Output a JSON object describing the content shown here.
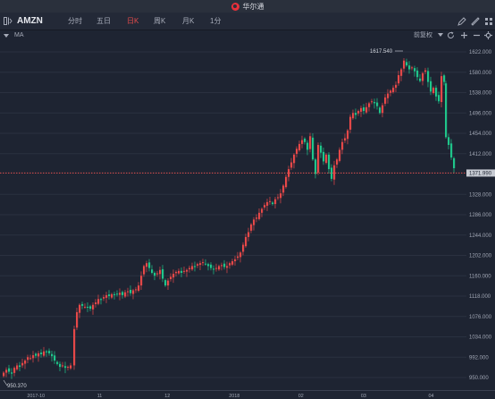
{
  "app": {
    "title": "华尔通"
  },
  "toolbar": {
    "symbol": "AMZN",
    "tabs": [
      {
        "label": "分时",
        "active": false
      },
      {
        "label": "五日",
        "active": false
      },
      {
        "label": "日K",
        "active": true
      },
      {
        "label": "周K",
        "active": false
      },
      {
        "label": "月K",
        "active": false
      },
      {
        "label": "1分",
        "active": false
      }
    ]
  },
  "subbar": {
    "indicator": "MA",
    "adjust_label": "前复权"
  },
  "colors": {
    "up": "#e54848",
    "down": "#1fc58a",
    "bg": "#1e2432",
    "grid": "#2c3342",
    "current": "#e05050"
  },
  "chart_data": {
    "type": "candlestick",
    "symbol": "AMZN",
    "y_ticks": [
      "1622.000",
      "1580.000",
      "1538.000",
      "1496.000",
      "1454.000",
      "1412.000",
      "1371.990",
      "1328.000",
      "1286.000",
      "1244.000",
      "1202.000",
      "1160.000",
      "1118.000",
      "1076.000",
      "1034.000",
      "992.000",
      "950.000"
    ],
    "x_ticks": [
      "2017-10",
      "11",
      "12",
      "2018",
      "02",
      "03",
      "04"
    ],
    "current_price": "1371.990",
    "max_label": "1617.540",
    "min_label": "950.370",
    "ylim": [
      950,
      1622
    ]
  }
}
